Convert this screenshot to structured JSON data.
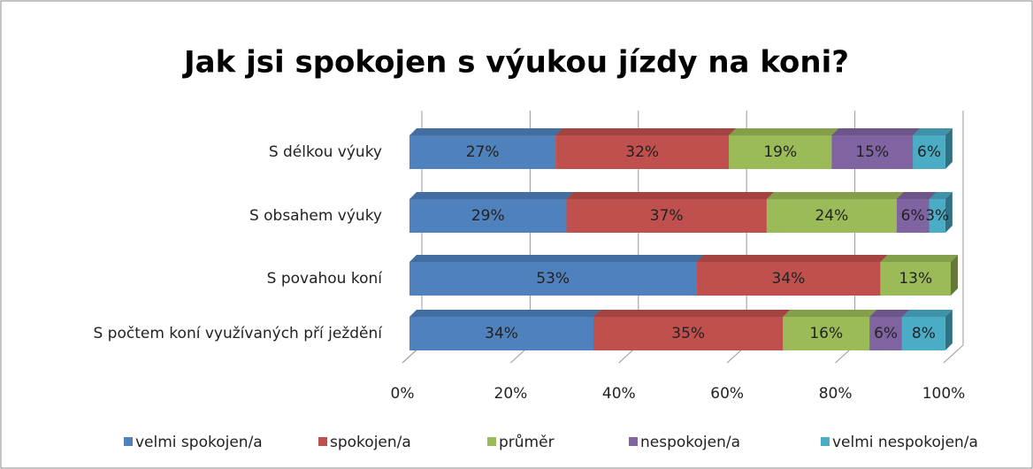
{
  "chart_data": {
    "type": "stacked_bar_horizontal_3d",
    "title": "Jak jsi spokojen s výukou jízdy na koni?",
    "categories": [
      "S délkou výuky",
      "S obsahem výuky",
      "S povahou koní",
      "S počtem koní využívaných pří ježdění"
    ],
    "series": [
      {
        "name": "velmi spokojen/a",
        "color": "#4f81bd",
        "values": [
          27,
          29,
          53,
          34
        ],
        "value_labels": [
          "27%",
          "29%",
          "53%",
          "34%"
        ]
      },
      {
        "name": "spokojen/a",
        "color": "#c0504d",
        "values": [
          32,
          37,
          34,
          35
        ],
        "value_labels": [
          "32%",
          "37%",
          "34%",
          "35%"
        ]
      },
      {
        "name": "průměr",
        "color": "#9bbb59",
        "values": [
          19,
          24,
          13,
          16
        ],
        "value_labels": [
          "19%",
          "24%",
          "13%",
          "16%"
        ]
      },
      {
        "name": "nespokojen/a",
        "color": "#8064a2",
        "values": [
          15,
          6,
          null,
          6
        ],
        "value_labels": [
          "15%",
          "6%",
          null,
          "6%"
        ]
      },
      {
        "name": "velmi nespokojen/a",
        "color": "#4bacc6",
        "values": [
          6,
          3,
          null,
          8
        ],
        "value_labels": [
          "6%",
          "3%",
          null,
          "8%"
        ]
      }
    ],
    "xlim": [
      0,
      100
    ],
    "xticks": [
      {
        "value": 0,
        "label": "0%"
      },
      {
        "value": 20,
        "label": "20%"
      },
      {
        "value": 40,
        "label": "40%"
      },
      {
        "value": 60,
        "label": "60%"
      },
      {
        "value": 80,
        "label": "80%"
      },
      {
        "value": 100,
        "label": "100%"
      }
    ],
    "grid": true,
    "legend": "bottom"
  }
}
